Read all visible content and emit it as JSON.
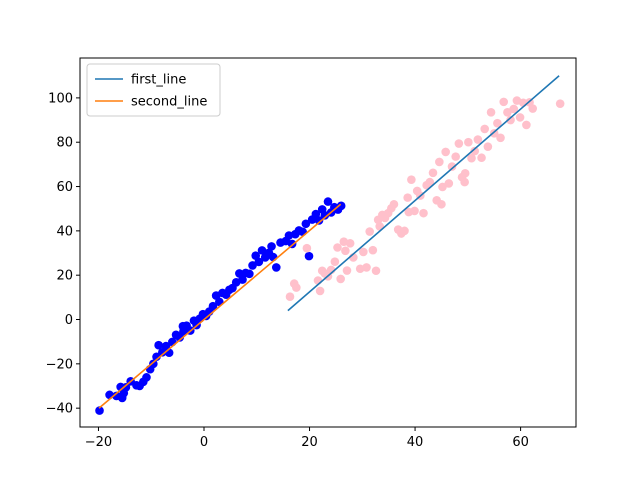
{
  "chart_data": {
    "type": "scatter",
    "title": "",
    "xlabel": "",
    "ylabel": "",
    "xlim": [
      -23.5,
      70.5
    ],
    "ylim": [
      -48.5,
      118
    ],
    "xticks": [
      -20,
      0,
      20,
      40,
      60
    ],
    "yticks": [
      -40,
      -20,
      0,
      20,
      40,
      60,
      80,
      100
    ],
    "grid": false,
    "legend_position": "upper-left",
    "series": [
      {
        "name": "first_line",
        "kind": "line",
        "color": "#1f77b4",
        "x": [
          15.9,
          67.3
        ],
        "y": [
          4.0,
          110.0
        ]
      },
      {
        "name": "second_line",
        "kind": "line",
        "color": "#ff7f0e",
        "x": [
          -19.9,
          25.9
        ],
        "y": [
          -40.0,
          52.0
        ]
      },
      {
        "kind": "scatter",
        "color": "#0000ff",
        "points": [
          [
            -19.8,
            -41.1
          ],
          [
            -17.9,
            -34.0
          ],
          [
            -16.6,
            -34.5
          ],
          [
            -15.8,
            -30.4
          ],
          [
            -15.5,
            -35.4
          ],
          [
            -15.2,
            -33.2
          ],
          [
            -13.9,
            -27.9
          ],
          [
            -12.8,
            -29.7
          ],
          [
            -12.2,
            -30.0
          ],
          [
            -11.5,
            -28.1
          ],
          [
            -10.9,
            -26.1
          ],
          [
            -10.2,
            -22.4
          ],
          [
            -9.6,
            -20.0
          ],
          [
            -9.0,
            -16.8
          ],
          [
            -8.6,
            -11.6
          ],
          [
            -7.9,
            -14.8
          ],
          [
            -7.2,
            -12.0
          ],
          [
            -6.6,
            -15.0
          ],
          [
            -6.0,
            -10.1
          ],
          [
            -5.3,
            -6.9
          ],
          [
            -4.6,
            -8.1
          ],
          [
            -3.9,
            -5.3
          ],
          [
            -3.3,
            -2.8
          ],
          [
            -2.6,
            -5.0
          ],
          [
            -1.9,
            -0.5
          ],
          [
            -1.4,
            -2.5
          ],
          [
            -0.8,
            0.4
          ],
          [
            -0.2,
            2.4
          ],
          [
            0.4,
            1.6
          ],
          [
            1.0,
            3.6
          ],
          [
            1.7,
            6.0
          ],
          [
            2.3,
            10.8
          ],
          [
            2.9,
            8.0
          ],
          [
            3.5,
            12.0
          ],
          [
            4.2,
            11.2
          ],
          [
            4.8,
            13.4
          ],
          [
            5.4,
            14.2
          ],
          [
            6.1,
            16.8
          ],
          [
            6.7,
            20.8
          ],
          [
            7.3,
            18.0
          ],
          [
            7.9,
            21.0
          ],
          [
            8.6,
            20.6
          ],
          [
            9.2,
            24.4
          ],
          [
            9.8,
            28.8
          ],
          [
            10.4,
            26.0
          ],
          [
            11.0,
            31.2
          ],
          [
            11.6,
            28.0
          ],
          [
            12.3,
            30.1
          ],
          [
            13.1,
            28.2
          ],
          [
            13.7,
            23.5
          ],
          [
            14.5,
            34.7
          ],
          [
            15.5,
            35.4
          ],
          [
            16.1,
            37.9
          ],
          [
            16.7,
            34.1
          ],
          [
            17.3,
            38.5
          ],
          [
            18.0,
            40.2
          ],
          [
            18.7,
            39.6
          ],
          [
            19.3,
            43.2
          ],
          [
            19.9,
            28.6
          ],
          [
            20.5,
            45.1
          ],
          [
            21.2,
            47.6
          ],
          [
            21.8,
            44.7
          ],
          [
            22.4,
            49.7
          ],
          [
            22.9,
            47.0
          ],
          [
            23.5,
            53.2
          ],
          [
            24.1,
            48.3
          ],
          [
            24.7,
            50.7
          ],
          [
            25.4,
            49.6
          ],
          [
            26.0,
            51.3
          ],
          [
            -14.8,
            -30.6
          ],
          [
            -4.0,
            -3.0
          ],
          [
            12.8,
            33.0
          ]
        ]
      },
      {
        "kind": "scatter",
        "color": "#ffc0cb",
        "points": [
          [
            16.3,
            10.3
          ],
          [
            17.1,
            16.2
          ],
          [
            17.5,
            14.4
          ],
          [
            19.5,
            32.2
          ],
          [
            21.6,
            17.6
          ],
          [
            22.0,
            12.9
          ],
          [
            22.4,
            22.0
          ],
          [
            22.9,
            20.8
          ],
          [
            23.5,
            19.5
          ],
          [
            24.1,
            22.4
          ],
          [
            24.8,
            26.1
          ],
          [
            25.3,
            32.5
          ],
          [
            25.9,
            18.3
          ],
          [
            26.5,
            35.1
          ],
          [
            27.1,
            22.1
          ],
          [
            27.7,
            34.4
          ],
          [
            28.3,
            28.0
          ],
          [
            29.6,
            22.9
          ],
          [
            30.2,
            30.5
          ],
          [
            30.8,
            23.5
          ],
          [
            31.4,
            39.7
          ],
          [
            32.0,
            31.3
          ],
          [
            32.6,
            22.0
          ],
          [
            33.3,
            42.0
          ],
          [
            33.8,
            47.2
          ],
          [
            34.3,
            45.8
          ],
          [
            34.9,
            48.0
          ],
          [
            35.5,
            50.2
          ],
          [
            36.8,
            40.6
          ],
          [
            37.4,
            38.8
          ],
          [
            38.0,
            40.0
          ],
          [
            38.6,
            55.0
          ],
          [
            39.3,
            63.1
          ],
          [
            39.9,
            49.0
          ],
          [
            40.4,
            58.0
          ],
          [
            41.0,
            55.9
          ],
          [
            41.6,
            48.0
          ],
          [
            42.2,
            60.6
          ],
          [
            42.8,
            62.0
          ],
          [
            43.4,
            66.2
          ],
          [
            44.1,
            53.8
          ],
          [
            44.6,
            71.1
          ],
          [
            45.2,
            59.8
          ],
          [
            45.8,
            75.6
          ],
          [
            46.4,
            61.4
          ],
          [
            47.0,
            69.0
          ],
          [
            47.7,
            73.5
          ],
          [
            48.3,
            79.4
          ],
          [
            48.9,
            64.2
          ],
          [
            49.5,
            66.0
          ],
          [
            50.1,
            80.0
          ],
          [
            50.7,
            72.8
          ],
          [
            51.3,
            76.0
          ],
          [
            51.9,
            81.2
          ],
          [
            52.6,
            73.0
          ],
          [
            53.2,
            86.0
          ],
          [
            53.8,
            78.0
          ],
          [
            54.4,
            93.5
          ],
          [
            55.0,
            84.0
          ],
          [
            55.6,
            88.6
          ],
          [
            56.2,
            82.0
          ],
          [
            56.8,
            98.2
          ],
          [
            57.5,
            93.5
          ],
          [
            58.1,
            90.0
          ],
          [
            58.7,
            95.0
          ],
          [
            59.3,
            98.8
          ],
          [
            59.9,
            91.2
          ],
          [
            60.5,
            97.8
          ],
          [
            61.1,
            87.8
          ],
          [
            61.7,
            98.0
          ],
          [
            62.3,
            95.2
          ],
          [
            67.5,
            97.4
          ],
          [
            45.0,
            52.0
          ],
          [
            38.8,
            48.5
          ],
          [
            49.4,
            62.0
          ],
          [
            26.8,
            31.0
          ],
          [
            33.0,
            45.0
          ],
          [
            36.0,
            52.0
          ]
        ]
      }
    ]
  }
}
